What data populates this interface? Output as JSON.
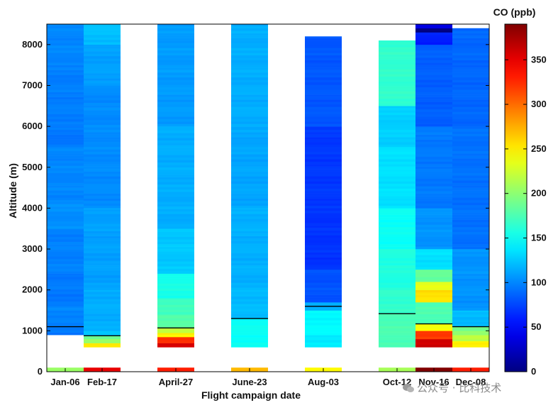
{
  "chart_data": {
    "type": "heatmap",
    "title": "",
    "xlabel": "Flight campaign date",
    "ylabel": "Altitude (m)",
    "ylim": [
      0,
      8500
    ],
    "yticks": [
      0,
      1000,
      2000,
      3000,
      4000,
      5000,
      6000,
      7000,
      8000
    ],
    "colorbar": {
      "label": "CO (ppb)",
      "range": [
        0,
        390
      ],
      "ticks": [
        0,
        50,
        100,
        150,
        200,
        250,
        300,
        350
      ],
      "colormap": "jet"
    },
    "column_labels": [
      {
        "text": "Jan-06",
        "slot": 0.5
      },
      {
        "text": "Feb-17",
        "slot": 1.5
      },
      {
        "text": "April-27",
        "slot": 3.5
      },
      {
        "text": "June-23",
        "slot": 5.5
      },
      {
        "text": "Aug-03",
        "slot": 7.5
      },
      {
        "text": "Oct-12",
        "slot": 9.5
      },
      {
        "text": "Nov-16",
        "slot": 10.5
      },
      {
        "text": "Dec-08",
        "slot": 11.5
      }
    ],
    "profiles": [
      {
        "name": "Jan-06",
        "slot": 0,
        "top": 8500,
        "ground_band": [
          0,
          100
        ],
        "ground_co": 205,
        "boundary_layer_height": 1100,
        "layers": [
          [
            900,
            1200,
            95
          ],
          [
            1200,
            1600,
            100
          ],
          [
            1600,
            2400,
            95
          ],
          [
            2400,
            3500,
            98
          ],
          [
            3500,
            4200,
            103
          ],
          [
            4200,
            5500,
            100
          ],
          [
            5500,
            6000,
            94
          ],
          [
            6000,
            7500,
            97
          ],
          [
            7500,
            8500,
            100
          ]
        ]
      },
      {
        "name": "Feb-17",
        "slot": 1,
        "top": 8500,
        "ground_band": [
          0,
          100
        ],
        "ground_co": 350,
        "boundary_layer_height": 880,
        "layers": [
          [
            600,
            700,
            250
          ],
          [
            700,
            800,
            205
          ],
          [
            800,
            880,
            190
          ],
          [
            880,
            1000,
            125
          ],
          [
            1000,
            2000,
            115
          ],
          [
            2000,
            4000,
            110
          ],
          [
            4000,
            7000,
            102
          ],
          [
            7000,
            8000,
            110
          ],
          [
            8000,
            8500,
            122
          ]
        ]
      },
      {
        "name": "April-27",
        "slot": 3,
        "top": 8500,
        "ground_band": [
          0,
          100
        ],
        "ground_co": 330,
        "boundary_layer_height": 1070,
        "layers": [
          [
            600,
            700,
            355
          ],
          [
            700,
            850,
            325
          ],
          [
            850,
            950,
            250
          ],
          [
            950,
            1070,
            220
          ],
          [
            1070,
            1400,
            180
          ],
          [
            1400,
            1800,
            170
          ],
          [
            1800,
            2400,
            155
          ],
          [
            2400,
            3500,
            125
          ],
          [
            3500,
            6000,
            115
          ],
          [
            6000,
            8500,
            108
          ]
        ]
      },
      {
        "name": "June-23",
        "slot": 5,
        "top": 8500,
        "ground_band": [
          0,
          100
        ],
        "ground_co": 270,
        "boundary_layer_height": 1300,
        "layers": [
          [
            600,
            1300,
            150
          ],
          [
            1300,
            2000,
            120
          ],
          [
            2000,
            4000,
            116
          ],
          [
            4000,
            6000,
            112
          ],
          [
            6000,
            8500,
            115
          ]
        ]
      },
      {
        "name": "Aug-03",
        "slot": 7,
        "top": 8200,
        "ground_band": [
          0,
          100
        ],
        "ground_co": 245,
        "boundary_layer_height": 1600,
        "layers": [
          [
            600,
            900,
            140
          ],
          [
            900,
            1500,
            145
          ],
          [
            1500,
            1700,
            115
          ],
          [
            1700,
            2500,
            80
          ],
          [
            2500,
            4000,
            68
          ],
          [
            4000,
            6000,
            70
          ],
          [
            6000,
            8200,
            82
          ]
        ]
      },
      {
        "name": "Oct-12",
        "slot": 9,
        "top": 8100,
        "ground_band": [
          0,
          100
        ],
        "ground_co": 210,
        "boundary_layer_height": 1420,
        "layers": [
          [
            600,
            1000,
            175
          ],
          [
            1000,
            1420,
            175
          ],
          [
            1420,
            2000,
            165
          ],
          [
            2000,
            3000,
            158
          ],
          [
            3000,
            4000,
            150
          ],
          [
            4000,
            5500,
            135
          ],
          [
            5500,
            6500,
            128
          ],
          [
            6500,
            8100,
            165
          ]
        ]
      },
      {
        "name": "Nov-16",
        "slot": 10,
        "top": 8500,
        "ground_band": [
          0,
          100
        ],
        "ground_co": 390,
        "boundary_layer_height": 1170,
        "layers": [
          [
            600,
            800,
            360
          ],
          [
            800,
            1000,
            320
          ],
          [
            1000,
            1170,
            240
          ],
          [
            1170,
            1700,
            175
          ],
          [
            1700,
            2000,
            255
          ],
          [
            2000,
            2200,
            235
          ],
          [
            2200,
            2500,
            185
          ],
          [
            2500,
            3000,
            135
          ],
          [
            3000,
            4000,
            105
          ],
          [
            4000,
            6000,
            95
          ],
          [
            6000,
            8000,
            85
          ],
          [
            8000,
            8300,
            60
          ],
          [
            8300,
            8400,
            0
          ],
          [
            8400,
            8500,
            40
          ]
        ]
      },
      {
        "name": "Dec-08",
        "slot": 11,
        "top": 8400,
        "ground_band": [
          0,
          100
        ],
        "ground_co": 330,
        "boundary_layer_height": 1100,
        "layers": [
          [
            600,
            750,
            250
          ],
          [
            750,
            900,
            220
          ],
          [
            900,
            1000,
            200
          ],
          [
            1000,
            1100,
            190
          ],
          [
            1100,
            1500,
            120
          ],
          [
            1500,
            3000,
            105
          ],
          [
            3000,
            6000,
            92
          ],
          [
            6000,
            8400,
            88
          ]
        ]
      }
    ]
  },
  "watermark": {
    "text": "公众号 · 比科技术"
  }
}
